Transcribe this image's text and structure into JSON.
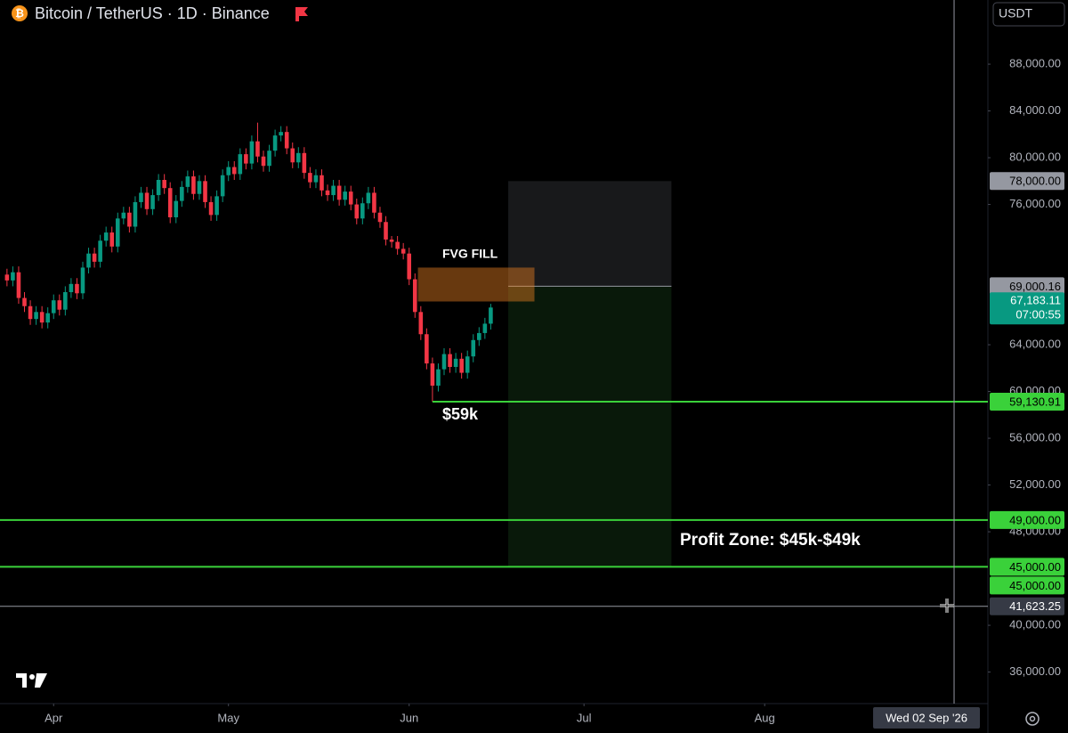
{
  "chart_data": {
    "type": "candlestick",
    "title": "Bitcoin / TetherUS · 1D · Binance",
    "currency": "USDT",
    "up_color": "#089981",
    "down_color": "#f23645",
    "grid": false,
    "open": [
      70000,
      69500,
      70200,
      68000,
      67300,
      66200,
      66800,
      65900,
      66700,
      67800,
      67000,
      68500,
      69200,
      68400,
      70600,
      71800,
      71100,
      72900,
      73600,
      72400,
      74800,
      75300,
      74100,
      76200,
      77000,
      75600,
      76800,
      78100,
      77400,
      74900,
      76300,
      77500,
      78400,
      76900,
      78000,
      76200,
      75100,
      76700,
      78500,
      79200,
      78600,
      80300,
      79500,
      81400,
      80100,
      79300,
      80600,
      81900,
      82200,
      80800,
      79600,
      80400,
      78700,
      77900,
      78500,
      77200,
      76800,
      77600,
      76400,
      77100,
      76000,
      74800,
      76100,
      77000,
      75300,
      74500,
      73000,
      72800,
      72200,
      71800,
      69600,
      66800,
      64900,
      62400,
      60500,
      61900,
      63200,
      62100,
      62800,
      61600,
      63000,
      64400,
      65000,
      65800
    ],
    "high": [
      70500,
      70700,
      70700,
      68500,
      67800,
      67300,
      67300,
      67200,
      68300,
      68300,
      69000,
      69700,
      69700,
      71100,
      72300,
      72300,
      73400,
      74100,
      74100,
      75300,
      75800,
      75800,
      76700,
      77500,
      77500,
      77300,
      78600,
      78600,
      77900,
      76800,
      78000,
      78900,
      78900,
      78500,
      78500,
      76700,
      77200,
      79000,
      79700,
      79700,
      80800,
      80800,
      81900,
      83000,
      80600,
      81100,
      82400,
      82700,
      82700,
      81300,
      80900,
      80900,
      79200,
      79000,
      79000,
      77700,
      78100,
      78100,
      77600,
      77600,
      76500,
      76600,
      77500,
      77500,
      75800,
      75000,
      73300,
      73300,
      72700,
      72300,
      70100,
      67300,
      65400,
      62900,
      62400,
      63700,
      63700,
      63300,
      63300,
      63500,
      64900,
      65500,
      66300,
      67500
    ],
    "low": [
      69000,
      69000,
      67500,
      66800,
      65700,
      65700,
      65400,
      65400,
      66200,
      66500,
      66500,
      68000,
      67900,
      67900,
      70100,
      70600,
      70600,
      72400,
      71900,
      71900,
      74300,
      73600,
      73600,
      75700,
      75100,
      75100,
      76300,
      76900,
      74400,
      74400,
      75800,
      77000,
      76400,
      76400,
      75700,
      74600,
      74600,
      76200,
      78000,
      78100,
      78100,
      79000,
      79000,
      79600,
      78800,
      78800,
      80100,
      81400,
      80300,
      79100,
      79100,
      78200,
      77400,
      77400,
      76700,
      76300,
      76300,
      75900,
      75900,
      75500,
      74300,
      74300,
      75600,
      74800,
      74000,
      72500,
      72300,
      71700,
      71300,
      69100,
      66300,
      64400,
      61900,
      59130.91,
      60000,
      61400,
      61600,
      61600,
      61100,
      61100,
      62500,
      63900,
      64500,
      65300
    ],
    "close": [
      69500,
      70200,
      68000,
      67300,
      66200,
      66800,
      65900,
      66700,
      67800,
      67000,
      68500,
      69200,
      68400,
      70600,
      71800,
      71100,
      72900,
      73600,
      72400,
      74800,
      75300,
      74100,
      76200,
      77000,
      75600,
      76800,
      78100,
      77400,
      74900,
      76300,
      77500,
      78400,
      76900,
      78000,
      76200,
      75100,
      76700,
      78500,
      79200,
      78600,
      80300,
      79500,
      81400,
      80100,
      79300,
      80600,
      81900,
      82200,
      80800,
      79600,
      80400,
      78700,
      77900,
      78500,
      77200,
      76800,
      77600,
      76400,
      77100,
      76000,
      74800,
      76100,
      77000,
      75300,
      74500,
      73000,
      72800,
      72200,
      71800,
      69600,
      66800,
      64900,
      62400,
      60500,
      61900,
      63200,
      62100,
      62800,
      61600,
      63000,
      64400,
      65000,
      65800,
      67183.11
    ],
    "xlim": [
      -1.2,
      168.3
    ],
    "xticks": [
      {
        "value": 8,
        "label": "Apr"
      },
      {
        "value": 38,
        "label": "May"
      },
      {
        "value": 69,
        "label": "Jun"
      },
      {
        "value": 99,
        "label": "Jul"
      },
      {
        "value": 130,
        "label": "Aug"
      }
    ],
    "ylim": [
      33300,
      93490
    ],
    "yticks": [
      {
        "value": 88000,
        "label": "88,000.00"
      },
      {
        "value": 84000,
        "label": "84,000.00"
      },
      {
        "value": 80000,
        "label": "80,000.00"
      },
      {
        "value": 76000,
        "label": "76,000.00"
      },
      {
        "value": 64000,
        "label": "64,000.00"
      },
      {
        "value": 60000,
        "label": "60,000.00"
      },
      {
        "value": 56000,
        "label": "56,000.00"
      },
      {
        "value": 52000,
        "label": "52,000.00"
      },
      {
        "value": 48000,
        "label": "48,000.00"
      },
      {
        "value": 40000,
        "label": "40,000.00"
      },
      {
        "value": 36000,
        "label": "36,000.00"
      }
    ],
    "levels": [
      {
        "value": 59130.91,
        "label": "59,130.91",
        "color": "#3ad13a",
        "from": 73
      },
      {
        "value": 49000,
        "label": "49,000.00",
        "color": "#3ad13a"
      },
      {
        "value": 45000,
        "label": "45,000.00",
        "color": "#3ad13a"
      }
    ],
    "position": {
      "from": 86,
      "to": 114,
      "stop": {
        "value": 78000,
        "label": "78,000.00"
      },
      "entry": {
        "value": 69000.16,
        "label": "69,000.16"
      },
      "target": {
        "value": 45000,
        "label": "45,000.00"
      }
    },
    "fvg": {
      "from": 70.5,
      "to": 90.5,
      "top": 70600,
      "bottom": 67700
    },
    "last_price": {
      "value": 67183.11,
      "label": "67,183.11",
      "countdown": "07:00:55"
    },
    "crosshair": {
      "x": 162.5,
      "price": 41623.25,
      "price_label": "41,623.25",
      "date_label": "Wed 02 Sep '26"
    },
    "annotations": [
      "FVG FILL",
      "$59k",
      "Profit Zone: $45k-$49k"
    ]
  }
}
